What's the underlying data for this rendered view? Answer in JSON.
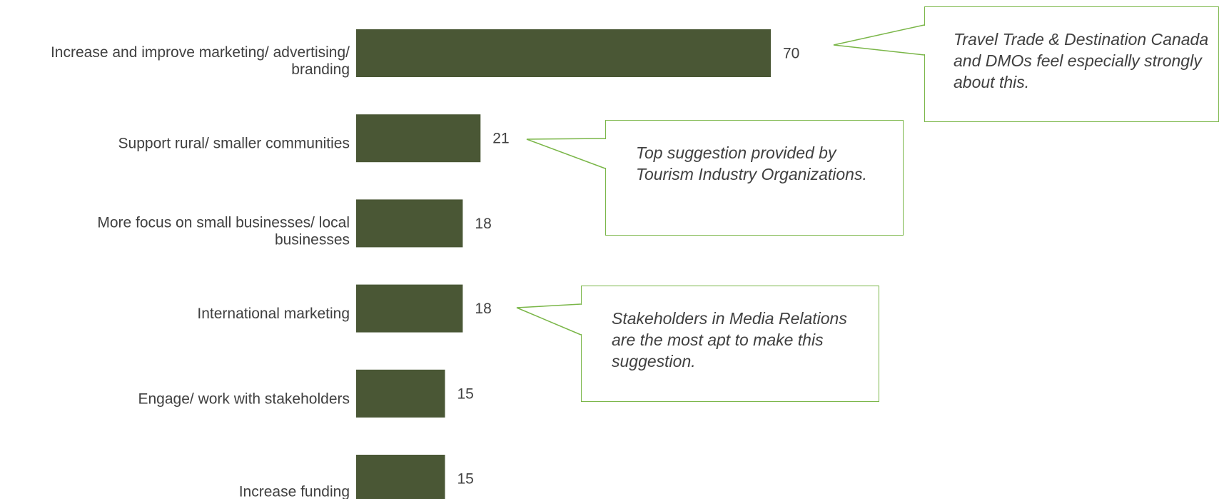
{
  "colors": {
    "bar": "#4a5735",
    "callout_border": "#7ab648",
    "text": "#404040"
  },
  "chart_data": {
    "type": "bar",
    "orientation": "horizontal",
    "categories": [
      [
        "Increase and improve marketing/ advertising/",
        "branding"
      ],
      [
        "Support rural/ smaller communities"
      ],
      [
        "More focus on small businesses/ local",
        "businesses"
      ],
      [
        "International marketing"
      ],
      [
        "Engage/ work with stakeholders"
      ],
      [
        "Increase funding"
      ]
    ],
    "values": [
      70,
      21,
      18,
      18,
      15,
      15
    ],
    "xlim": [
      0,
      70
    ],
    "grid": false,
    "legend": "none"
  },
  "callouts": [
    {
      "text": "Travel Trade & Destination Canada and DMOs feel especially strongly about this."
    },
    {
      "text": "Top suggestion provided by Tourism Industry Organizations."
    },
    {
      "text": "Stakeholders in Media Relations are the most apt to make this suggestion."
    }
  ]
}
